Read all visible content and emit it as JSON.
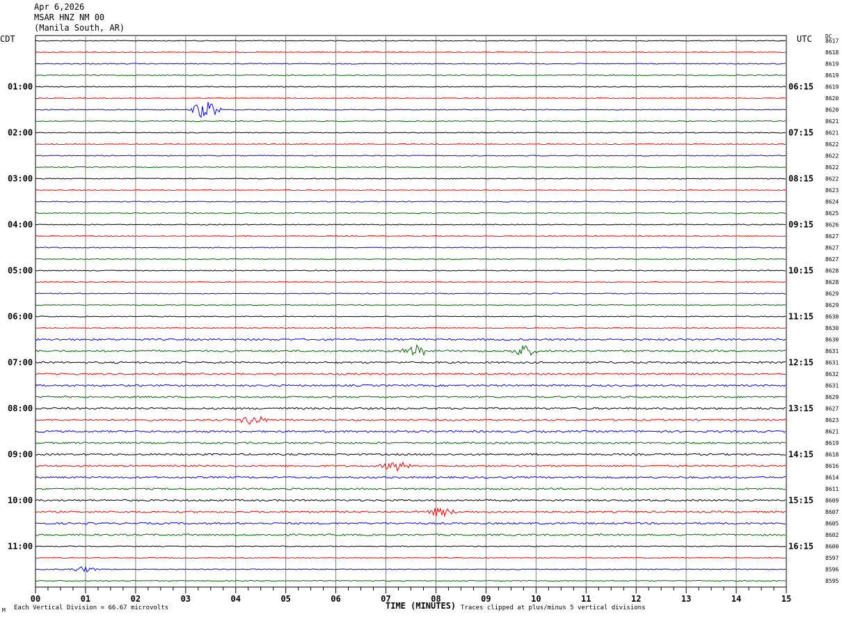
{
  "header": {
    "date": "Apr 6,2026",
    "station": "MSAR HNZ NM 00",
    "location": "(Manila South, AR)"
  },
  "left_timezone": "CDT",
  "right_timezone": "UTC",
  "dc_label": "DC",
  "footer": {
    "scale_note": "Each Vertical Division =   66.67 microvolts",
    "xlabel": "TIME (MINUTES)",
    "clip_note": "Traces clipped at plus/minus 5 vertical divisions",
    "corner_mark": "M"
  },
  "colors": {
    "trace_cycle": [
      "#000000",
      "#ff0000",
      "#0000ff",
      "#006400"
    ],
    "grid": "#808080"
  },
  "chart_data": {
    "type": "line",
    "title": "MSAR HNZ NM 00",
    "xlabel": "TIME (MINUTES)",
    "xlim": [
      0,
      15
    ],
    "x_ticks": [
      "00",
      "01",
      "02",
      "03",
      "04",
      "05",
      "06",
      "07",
      "08",
      "09",
      "10",
      "11",
      "12",
      "13",
      "14",
      "15"
    ],
    "left_hour_labels": [
      "01:00",
      "02:00",
      "03:00",
      "04:00",
      "05:00",
      "06:00",
      "07:00",
      "08:00",
      "09:00",
      "10:00",
      "11:00"
    ],
    "right_hour_labels": [
      "06:15",
      "07:15",
      "08:15",
      "09:15",
      "10:15",
      "11:15",
      "12:15",
      "13:15",
      "14:15",
      "15:15",
      "16:15"
    ],
    "hour_label_rows": [
      4,
      8,
      12,
      16,
      20,
      24,
      28,
      32,
      36,
      40,
      44
    ],
    "dc_offsets": [
      8617,
      8618,
      8619,
      8619,
      8619,
      8620,
      8620,
      8621,
      8621,
      8622,
      8622,
      8622,
      8622,
      8623,
      8624,
      8625,
      8626,
      8627,
      8627,
      8627,
      8628,
      8628,
      8629,
      8629,
      8630,
      8630,
      8630,
      8631,
      8631,
      8632,
      8631,
      8629,
      8627,
      8623,
      8621,
      8619,
      8618,
      8616,
      8614,
      8611,
      8609,
      8607,
      8605,
      8602,
      8600,
      8597,
      8596,
      8595
    ],
    "trace_count": 48,
    "minutes_per_trace": 15,
    "events": [
      {
        "trace": 6,
        "minute": 3.4,
        "amplitude": 3.0
      },
      {
        "trace": 27,
        "minute": 7.6,
        "amplitude": 1.6
      },
      {
        "trace": 27,
        "minute": 9.75,
        "amplitude": 1.6
      },
      {
        "trace": 33,
        "minute": 4.35,
        "amplitude": 1.4
      },
      {
        "trace": 37,
        "minute": 7.2,
        "amplitude": 1.5
      },
      {
        "trace": 41,
        "minute": 8.1,
        "amplitude": 1.3
      },
      {
        "trace": 46,
        "minute": 0.95,
        "amplitude": 0.8
      }
    ]
  }
}
